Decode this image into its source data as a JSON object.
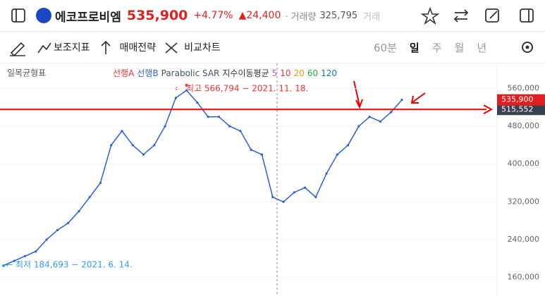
{
  "header": {
    "name": "에코프로비엠",
    "price": "535,900",
    "change_pct": "+4.77%",
    "change": "▲24,400",
    "volume_label": "거래량",
    "volume": "325,795",
    "more": "거래"
  },
  "toolbar": {
    "tools": [
      "보조지표",
      "매매전략",
      "비교차트"
    ],
    "periods": [
      "60분",
      "일",
      "주",
      "월",
      "년"
    ],
    "selected": 1
  },
  "chart_data": {
    "type": "line",
    "indicator": "일목균형표",
    "legend": [
      {
        "name": "선행A",
        "color": "#e33"
      },
      {
        "name": "선행B",
        "color": "#36c"
      },
      {
        "name": "Parabolic SAR",
        "color": "#456"
      },
      {
        "name": "지수이동평균",
        "color": "#333"
      },
      {
        "name": "5",
        "color": "#c5c"
      },
      {
        "name": "10",
        "color": "#e33"
      },
      {
        "name": "20",
        "color": "#e90"
      },
      {
        "name": "60",
        "color": "#2a4"
      },
      {
        "name": "120",
        "color": "#17a"
      }
    ],
    "values": [
      185000,
      195000,
      205000,
      215000,
      240000,
      260000,
      275000,
      300000,
      330000,
      360000,
      440000,
      470000,
      440000,
      420000,
      440000,
      480000,
      540000,
      556000,
      530000,
      500000,
      500000,
      480000,
      470000,
      430000,
      420000,
      330000,
      320000,
      340000,
      350000,
      330000,
      380000,
      420000,
      440000,
      480000,
      500000,
      490000,
      510000,
      535900
    ],
    "color": "#2a5fd6",
    "ylim": [
      120600,
      613000
    ],
    "yticks": [
      {
        "value": 160000,
        "label": "160,000"
      },
      {
        "value": 240000,
        "label": "240,000"
      },
      {
        "value": 320000,
        "label": "320,000"
      },
      {
        "value": 400000,
        "label": "400,000"
      },
      {
        "value": 480000,
        "label": "480,000"
      },
      {
        "value": 560000,
        "label": "560,000"
      }
    ],
    "current": {
      "value": 535900,
      "label": "535,900"
    },
    "hline": {
      "value": 515552,
      "label": "515,552"
    },
    "annotations": [
      {
        "text": "최고 566,794 − 2021. 11. 18.",
        "value": 566794,
        "index": 17
      },
      {
        "text": "최저 184,693 − 2021. 6. 14.",
        "value": 184693,
        "index": 0
      }
    ]
  }
}
